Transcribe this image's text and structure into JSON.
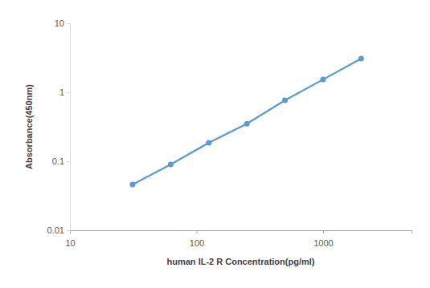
{
  "chart_data": {
    "type": "line",
    "x_label": "human IL-2 R  Concentration(pg/ml)",
    "y_label": "Absorbance(450nm)",
    "x": [
      31.25,
      62.5,
      125,
      250,
      500,
      1000,
      2000
    ],
    "series": [
      {
        "name": "human IL-2 R",
        "color": "#5b9bd5",
        "marker": "circle",
        "line_style": "solid",
        "values": [
          0.046,
          0.09,
          0.185,
          0.35,
          0.765,
          1.53,
          3.08
        ]
      }
    ],
    "log": true,
    "grid": false,
    "xlim": [
      10,
      5000
    ],
    "xticks": [
      10,
      100,
      1000
    ],
    "ylim": [
      0.01,
      10
    ],
    "yticks": [
      0.01,
      0.1,
      1,
      10
    ]
  }
}
